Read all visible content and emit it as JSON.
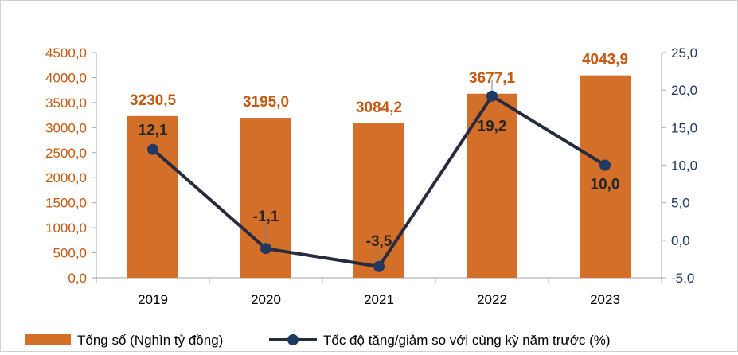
{
  "chart_data": {
    "type": "bar",
    "categories": [
      "2019",
      "2020",
      "2021",
      "2022",
      "2023"
    ],
    "series": [
      {
        "name": "Tổng số (Nghìn tỷ đồng)",
        "type": "bar",
        "axis": "left",
        "color": "#d46f2a",
        "values": [
          3230.5,
          3195.0,
          3084.2,
          3677.1,
          4043.9
        ],
        "labels": [
          "3230,5",
          "3195,0",
          "3084,2",
          "3677,1",
          "4043,9"
        ]
      },
      {
        "name": "Tốc độ tăng/giảm so với cùng kỳ năm trước (%)",
        "type": "line",
        "axis": "right",
        "color": "#262b3d",
        "marker_color": "#1f3864",
        "values": [
          12.1,
          -1.1,
          -3.5,
          19.2,
          10.0
        ],
        "labels": [
          "12,1",
          "-1,1",
          "-3,5",
          "19,2",
          "10,0"
        ]
      }
    ],
    "y_left": {
      "min": 0,
      "max": 4500,
      "ticks": [
        "0,0",
        "500,0",
        "1000,0",
        "1500,0",
        "2000,0",
        "2500,0",
        "3000,0",
        "3500,0",
        "4000,0",
        "4500,0"
      ]
    },
    "y_right": {
      "min": -5,
      "max": 25,
      "ticks": [
        "-5,0",
        "0,0",
        "5,0",
        "10,0",
        "15,0",
        "20,0",
        "25,0"
      ]
    },
    "grid": false,
    "legend_position": "bottom",
    "title": "",
    "xlabel": "",
    "ylabel": ""
  }
}
